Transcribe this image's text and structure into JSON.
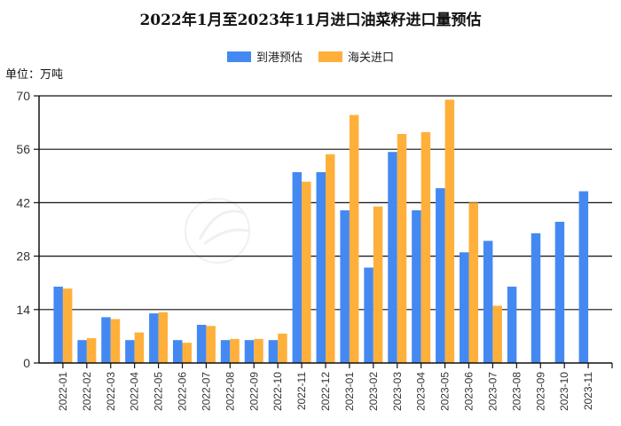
{
  "chart_data": {
    "type": "bar",
    "title": "2022年1月至2023年11月进口油菜籽进口量预估",
    "unit_label": "单位：万吨",
    "xlabel": "",
    "ylabel": "万吨",
    "ylim": [
      0,
      70
    ],
    "yticks": [
      0,
      14,
      28,
      42,
      56,
      70
    ],
    "grid": true,
    "legend_position": "top",
    "categories": [
      "2022-01",
      "2022-02",
      "2022-03",
      "2022-04",
      "2022-05",
      "2022-06",
      "2022-07",
      "2022-08",
      "2022-09",
      "2022-10",
      "2022-11",
      "2022-12",
      "2023-01",
      "2023-02",
      "2023-03",
      "2023-04",
      "2023-05",
      "2023-06",
      "2023-07",
      "2023-08",
      "2023-09",
      "2023-10",
      "2023-11"
    ],
    "series": [
      {
        "name": "到港预估",
        "color": "#4489f2",
        "values": [
          20,
          6,
          12,
          6,
          13,
          6,
          10,
          6,
          6,
          6,
          50,
          50,
          40,
          25,
          55.3,
          40,
          45.8,
          29,
          32,
          20,
          34,
          37,
          45
        ]
      },
      {
        "name": "海关进口",
        "color": "#ffb03b",
        "values": [
          19.5,
          6.5,
          11.5,
          8,
          13.3,
          5.3,
          9.7,
          6.3,
          6.3,
          7.7,
          47.5,
          54.7,
          65,
          41,
          60,
          60.5,
          69,
          42,
          15,
          null,
          null,
          null,
          null
        ]
      }
    ]
  },
  "legend": {
    "items": [
      {
        "label": "到港预估",
        "color": "#4489f2"
      },
      {
        "label": "海关进口",
        "color": "#ffb03b"
      }
    ]
  }
}
